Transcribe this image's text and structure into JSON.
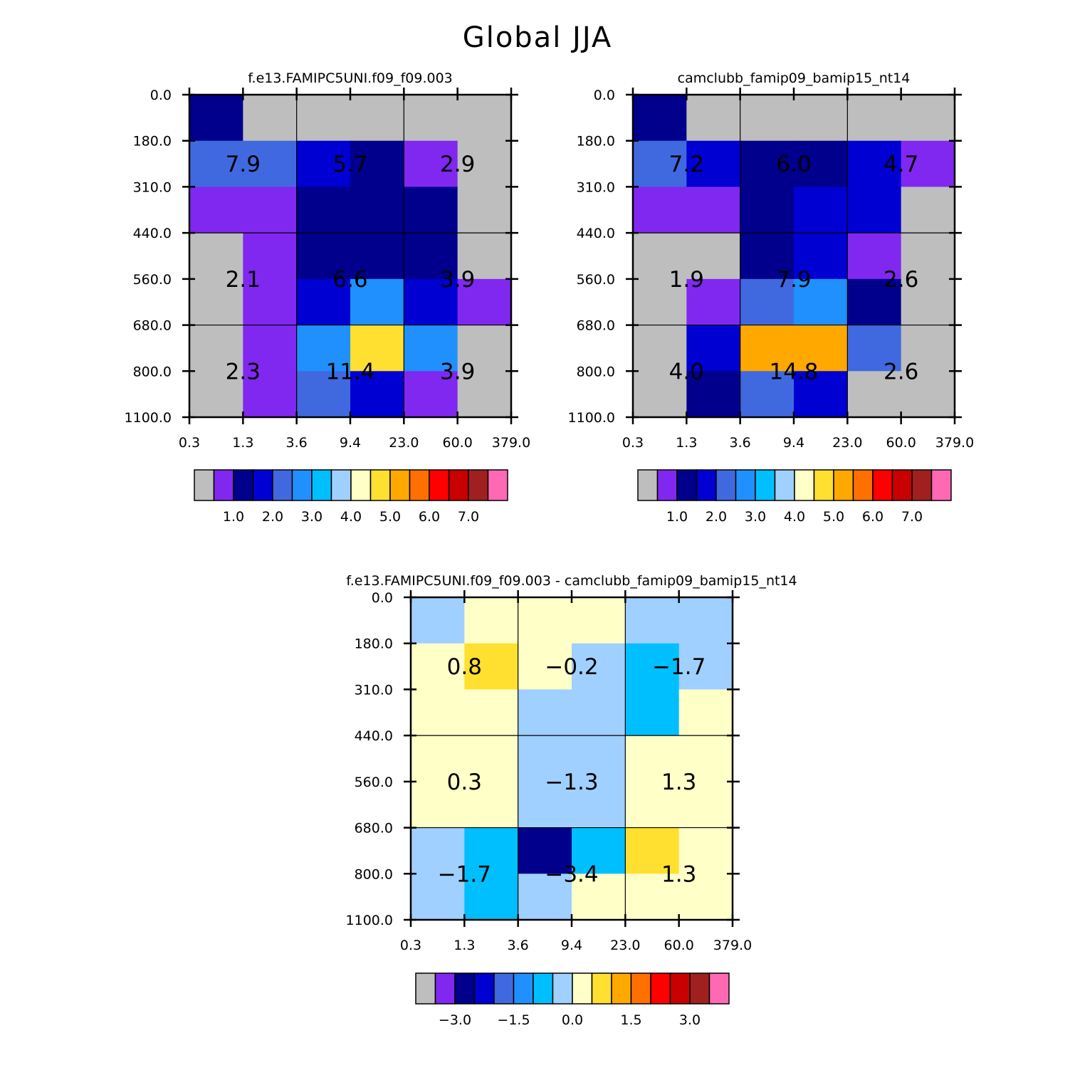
{
  "title": "Global JJA",
  "x_ticks": [
    "0.3",
    "1.3",
    "3.6",
    "9.4",
    "23.0",
    "60.0",
    "379.0"
  ],
  "y_ticks": [
    "0.0",
    "180.0",
    "310.0",
    "440.0",
    "560.0",
    "680.0",
    "800.0",
    "1100.0"
  ],
  "palette": [
    "#bebebe",
    "#8028f0",
    "#00008c",
    "#0000d2",
    "#4069e0",
    "#2090ff",
    "#00bfff",
    "#a0d0ff",
    "#ffffc8",
    "#ffe030",
    "#ffa800",
    "#ff7000",
    "#ff0000",
    "#c80000",
    "#a02020",
    "#ff69b4"
  ],
  "chart_data": [
    {
      "type": "heatmap",
      "title": "f.e13.FAMIPC5UNI.f09_f09.003",
      "x_tick_labels": [
        "0.3",
        "1.3",
        "3.6",
        "9.4",
        "23.0",
        "60.0",
        "379.0"
      ],
      "y_tick_labels": [
        "0.0",
        "180.0",
        "310.0",
        "440.0",
        "560.0",
        "680.0",
        "800.0",
        "1100.0"
      ],
      "cell_color_index": [
        [
          2,
          0,
          0,
          0,
          0,
          0
        ],
        [
          4,
          4,
          3,
          2,
          1,
          0
        ],
        [
          1,
          1,
          2,
          2,
          2,
          0
        ],
        [
          0,
          1,
          2,
          2,
          2,
          0
        ],
        [
          0,
          1,
          3,
          5,
          3,
          1
        ],
        [
          0,
          1,
          5,
          9,
          5,
          0
        ],
        [
          0,
          1,
          4,
          3,
          1,
          0
        ]
      ],
      "block_values": [
        [
          "7.9",
          "5.7",
          "2.9"
        ],
        [
          "2.1",
          "6.6",
          "3.9"
        ],
        [
          "2.3",
          "11.4",
          "3.9"
        ]
      ],
      "colorbar_labels": [
        "1.0",
        "2.0",
        "3.0",
        "4.0",
        "5.0",
        "6.0",
        "7.0"
      ]
    },
    {
      "type": "heatmap",
      "title": "camclubb_famip09_bamip15_nt14",
      "x_tick_labels": [
        "0.3",
        "1.3",
        "3.6",
        "9.4",
        "23.0",
        "60.0",
        "379.0"
      ],
      "y_tick_labels": [
        "0.0",
        "180.0",
        "310.0",
        "440.0",
        "560.0",
        "680.0",
        "800.0",
        "1100.0"
      ],
      "cell_color_index": [
        [
          2,
          0,
          0,
          0,
          0,
          0
        ],
        [
          4,
          3,
          2,
          2,
          3,
          1
        ],
        [
          1,
          1,
          2,
          3,
          3,
          0
        ],
        [
          0,
          0,
          2,
          3,
          1,
          0
        ],
        [
          0,
          1,
          4,
          5,
          2,
          0
        ],
        [
          0,
          3,
          10,
          10,
          4,
          0
        ],
        [
          0,
          2,
          4,
          3,
          0,
          0
        ]
      ],
      "block_values": [
        [
          "7.2",
          "6.0",
          "4.7"
        ],
        [
          "1.9",
          "7.9",
          "2.6"
        ],
        [
          "4.0",
          "14.8",
          "2.6"
        ]
      ],
      "colorbar_labels": [
        "1.0",
        "2.0",
        "3.0",
        "4.0",
        "5.0",
        "6.0",
        "7.0"
      ]
    },
    {
      "type": "heatmap",
      "title": "f.e13.FAMIPC5UNI.f09_f09.003 - camclubb_famip09_bamip15_nt14",
      "x_tick_labels": [
        "0.3",
        "1.3",
        "3.6",
        "9.4",
        "23.0",
        "60.0",
        "379.0"
      ],
      "y_tick_labels": [
        "0.0",
        "180.0",
        "310.0",
        "440.0",
        "560.0",
        "680.0",
        "800.0",
        "1100.0"
      ],
      "cell_color_index": [
        [
          7,
          8,
          8,
          8,
          7,
          7
        ],
        [
          8,
          9,
          8,
          7,
          6,
          7
        ],
        [
          8,
          8,
          7,
          7,
          6,
          8
        ],
        [
          8,
          8,
          7,
          7,
          8,
          8
        ],
        [
          8,
          8,
          7,
          7,
          8,
          8
        ],
        [
          7,
          6,
          2,
          6,
          9,
          8
        ],
        [
          7,
          6,
          7,
          8,
          8,
          8
        ]
      ],
      "block_values": [
        [
          "0.8",
          "-0.2",
          "-1.7"
        ],
        [
          "0.3",
          "-1.3",
          "1.3"
        ],
        [
          "-1.7",
          "-3.4",
          "1.3"
        ]
      ],
      "colorbar_labels": [
        "-3.0",
        "-1.5",
        "0.0",
        "1.5",
        "3.0"
      ]
    }
  ]
}
